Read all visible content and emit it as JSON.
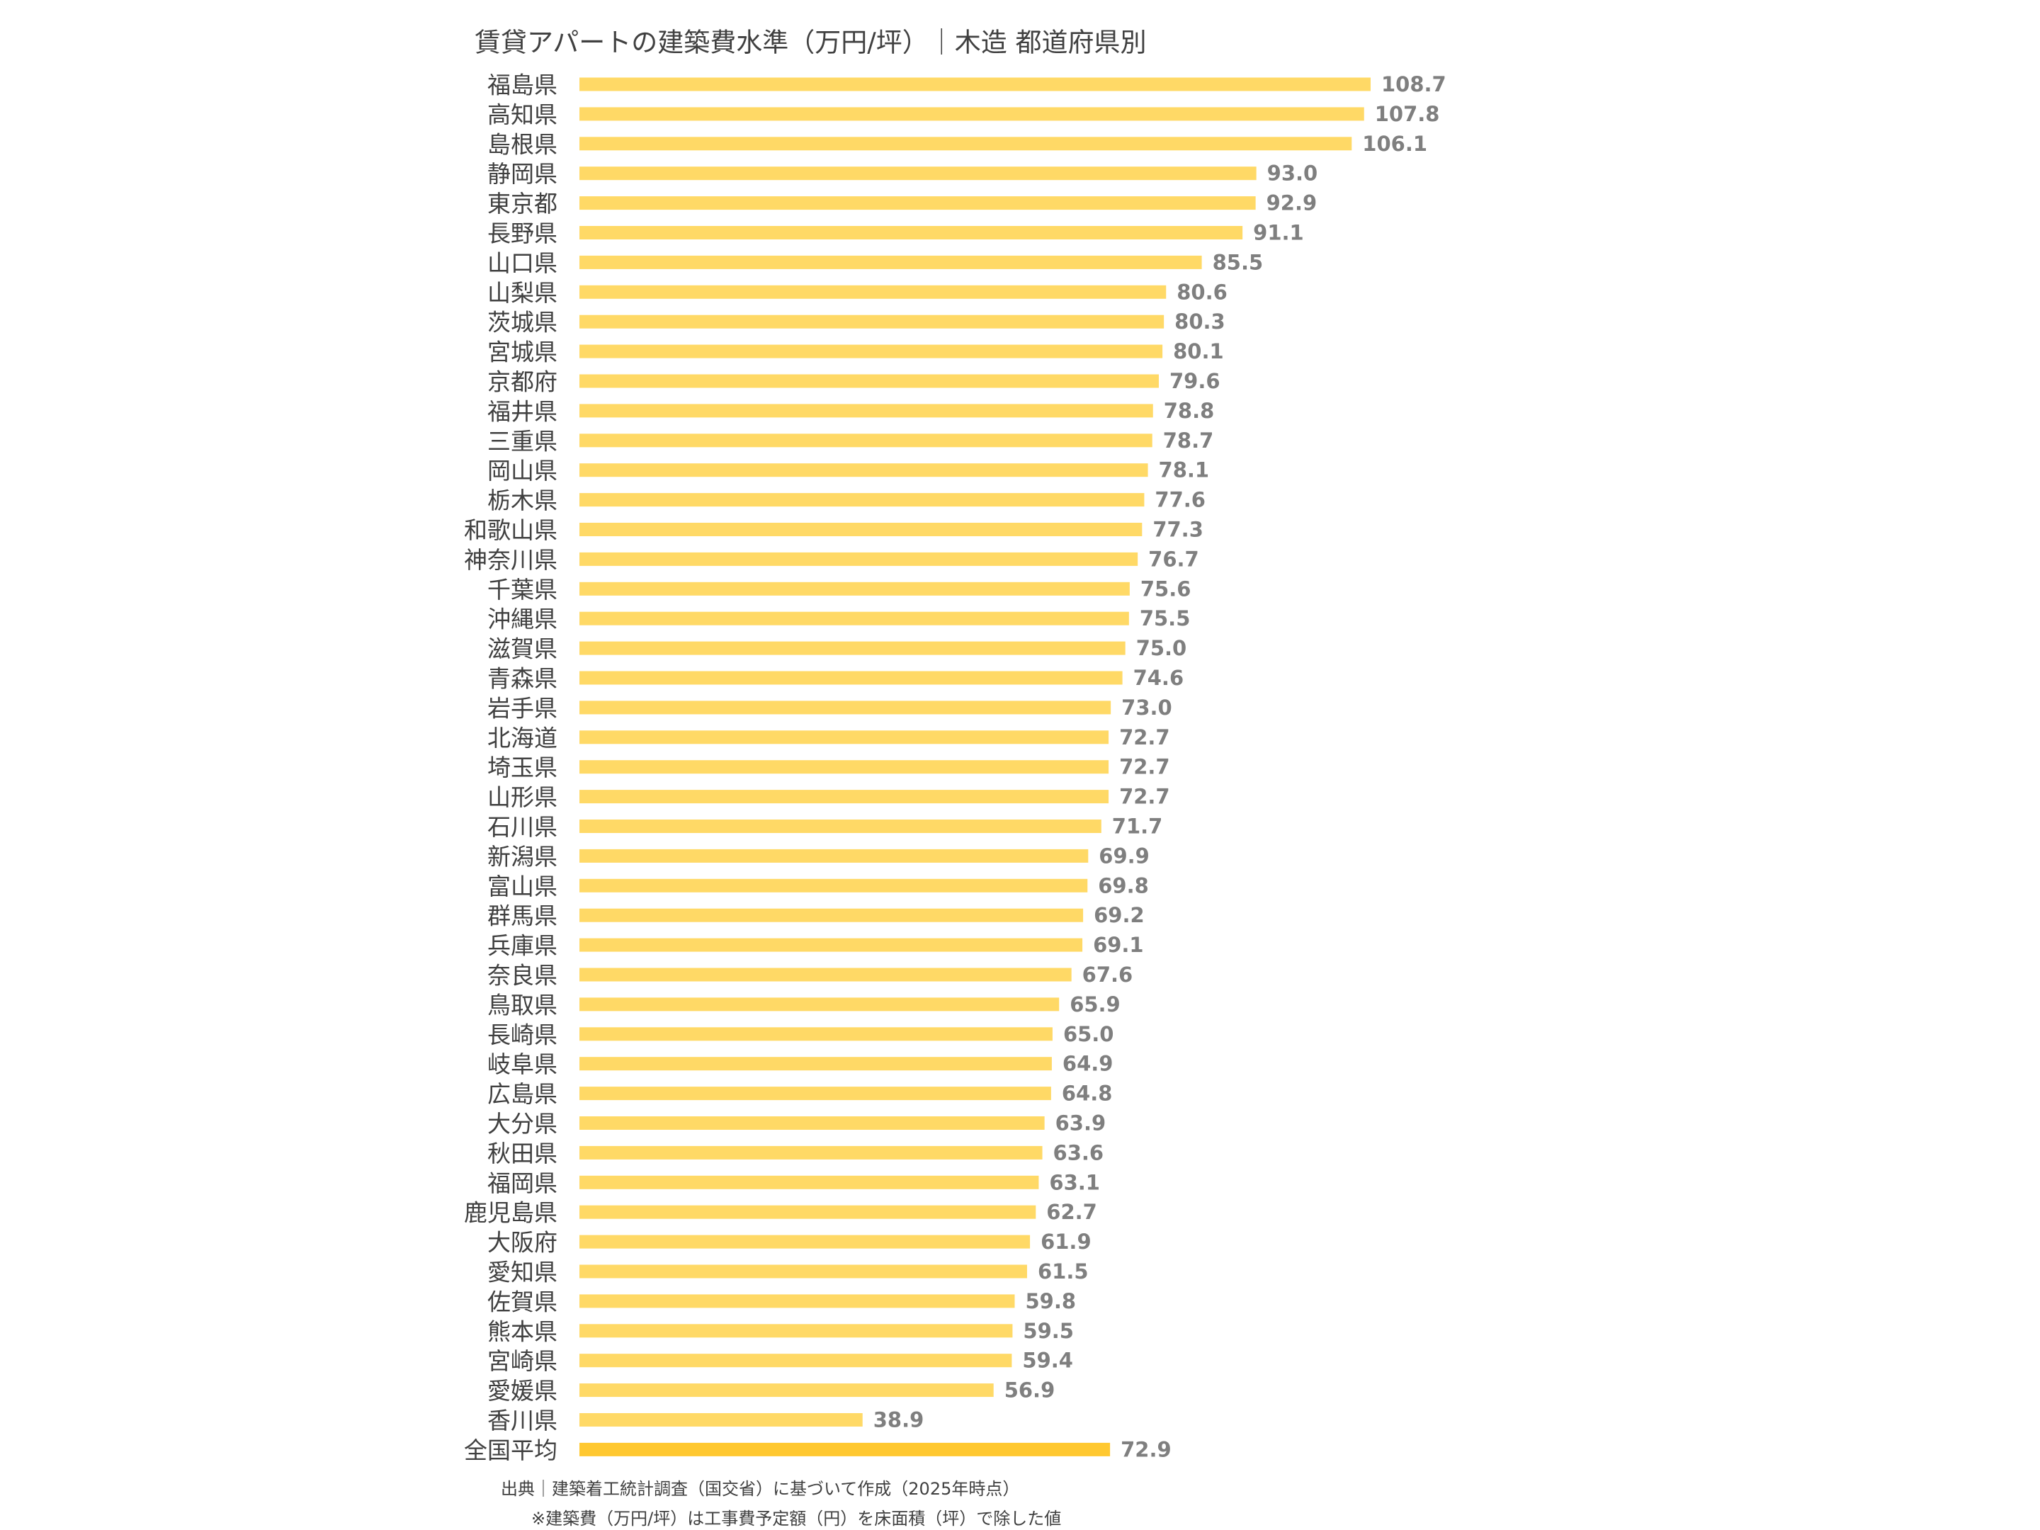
{
  "chart_data": {
    "type": "barh",
    "title": "賃貸アパートの建築費水準（万円/坪）｜木造 都道府県別",
    "categories": [
      "福島県",
      "高知県",
      "島根県",
      "静岡県",
      "東京都",
      "長野県",
      "山口県",
      "山梨県",
      "茨城県",
      "宮城県",
      "京都府",
      "福井県",
      "三重県",
      "岡山県",
      "栃木県",
      "和歌山県",
      "神奈川県",
      "千葉県",
      "沖縄県",
      "滋賀県",
      "青森県",
      "岩手県",
      "北海道",
      "埼玉県",
      "山形県",
      "石川県",
      "新潟県",
      "富山県",
      "群馬県",
      "兵庫県",
      "奈良県",
      "鳥取県",
      "長崎県",
      "岐阜県",
      "広島県",
      "大分県",
      "秋田県",
      "福岡県",
      "鹿児島県",
      "大阪府",
      "愛知県",
      "佐賀県",
      "熊本県",
      "宮崎県",
      "愛媛県",
      "香川県",
      "全国平均"
    ],
    "values": [
      108.7,
      107.8,
      106.1,
      93.0,
      92.9,
      91.1,
      85.5,
      80.6,
      80.3,
      80.1,
      79.6,
      78.8,
      78.7,
      78.1,
      77.6,
      77.3,
      76.7,
      75.6,
      75.5,
      75.0,
      74.6,
      73.0,
      72.7,
      72.7,
      72.7,
      71.7,
      69.9,
      69.8,
      69.2,
      69.1,
      67.6,
      65.9,
      65.0,
      64.9,
      64.8,
      63.9,
      63.6,
      63.1,
      62.7,
      61.9,
      61.5,
      59.8,
      59.5,
      59.4,
      56.9,
      38.9,
      72.9
    ],
    "value_labels": [
      "108.7",
      "107.8",
      "106.1",
      "93.0",
      "92.9",
      "91.1",
      "85.5",
      "80.6",
      "80.3",
      "80.1",
      "79.6",
      "78.8",
      "78.7",
      "78.1",
      "77.6",
      "77.3",
      "76.7",
      "75.6",
      "75.5",
      "75.0",
      "74.6",
      "73.0",
      "72.7",
      "72.7",
      "72.7",
      "71.7",
      "69.9",
      "69.8",
      "69.2",
      "69.1",
      "67.6",
      "65.9",
      "65.0",
      "64.9",
      "64.8",
      "63.9",
      "63.6",
      "63.1",
      "62.7",
      "61.9",
      "61.5",
      "59.8",
      "59.5",
      "59.4",
      "56.9",
      "38.9",
      "72.9"
    ],
    "colors": [
      "#FFD966",
      "#FFD966",
      "#FFD966",
      "#FFD966",
      "#FFD966",
      "#FFD966",
      "#FFD966",
      "#FFD966",
      "#FFD966",
      "#FFD966",
      "#FFD966",
      "#FFD966",
      "#FFD966",
      "#FFD966",
      "#FFD966",
      "#FFD966",
      "#FFD966",
      "#FFD966",
      "#FFD966",
      "#FFD966",
      "#FFD966",
      "#FFD966",
      "#FFD966",
      "#FFD966",
      "#FFD966",
      "#FFD966",
      "#FFD966",
      "#FFD966",
      "#FFD966",
      "#FFD966",
      "#FFD966",
      "#FFD966",
      "#FFD966",
      "#FFD966",
      "#FFD966",
      "#FFD966",
      "#FFD966",
      "#FFD966",
      "#FFD966",
      "#FFD966",
      "#FFD966",
      "#FFD966",
      "#FFD966",
      "#FFD966",
      "#FFD966",
      "#FFD966",
      "#FFC830"
    ],
    "notes": [
      "出典｜建築着工統計調査（国交省）に基づいて作成（2025年時点）",
      "※建築費（万円/坪）は工事費予定額（円）を床面積（坪）で除した値"
    ]
  }
}
